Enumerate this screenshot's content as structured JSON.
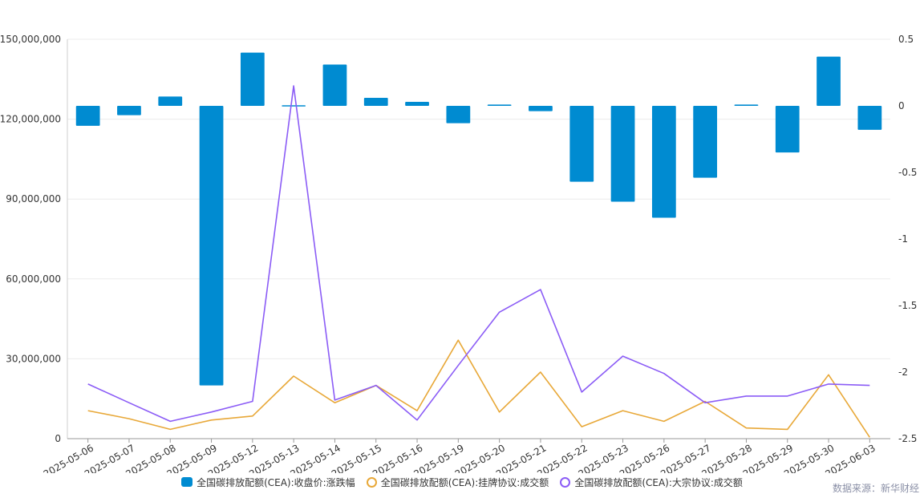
{
  "chart_data": {
    "type": "bar+line",
    "categories": [
      "2025-05-06",
      "2025-05-07",
      "2025-05-08",
      "2025-05-09",
      "2025-05-12",
      "2025-05-13",
      "2025-05-14",
      "2025-05-15",
      "2025-05-16",
      "2025-05-19",
      "2025-05-20",
      "2025-05-21",
      "2025-05-22",
      "2025-05-23",
      "2025-05-26",
      "2025-05-27",
      "2025-05-28",
      "2025-05-29",
      "2025-05-30",
      "2025-06-03"
    ],
    "left_axis": {
      "min": 0,
      "max": 150000000,
      "ticks": [
        "0",
        "30,000,000",
        "60,000,000",
        "90,000,000",
        "120,000,000",
        "150,000,000"
      ]
    },
    "right_axis": {
      "min": -2.5,
      "max": 0.5,
      "ticks": [
        "-2.5",
        "-2",
        "-1.5",
        "-1",
        "-0.5",
        "0",
        "0.5"
      ]
    },
    "series": [
      {
        "name": "全国碳排放配额(CEA):收盘价:涨跌幅",
        "type": "bar",
        "axis": "right",
        "color": "#008bd1",
        "values": [
          -0.15,
          -0.07,
          0.07,
          -2.1,
          0.4,
          0,
          0.31,
          0.06,
          0.03,
          -0.13,
          0.01,
          -0.04,
          -0.57,
          -0.72,
          -0.84,
          -0.54,
          0.01,
          -0.35,
          0.37,
          -0.18
        ]
      },
      {
        "name": "全国碳排放配额(CEA):挂牌协议:成交额",
        "type": "line",
        "axis": "left",
        "color": "#e8a838",
        "values": [
          10500000,
          7500000,
          3500000,
          7000000,
          8500000,
          23500000,
          13500000,
          20000000,
          10500000,
          37000000,
          10000000,
          25000000,
          4500000,
          10500000,
          6500000,
          14000000,
          4000000,
          3500000,
          24000000,
          500000
        ]
      },
      {
        "name": "全国碳排放配额(CEA):大宗协议:成交额",
        "type": "line",
        "axis": "left",
        "color": "#8b5cf6",
        "values": [
          20500000,
          13500000,
          6500000,
          10000000,
          14000000,
          132500000,
          14500000,
          20000000,
          7000000,
          27500000,
          47500000,
          56000000,
          17500000,
          31000000,
          24500000,
          13500000,
          16000000,
          16000000,
          20500000,
          20000000
        ]
      }
    ]
  },
  "source": "数据来源：新华财经"
}
